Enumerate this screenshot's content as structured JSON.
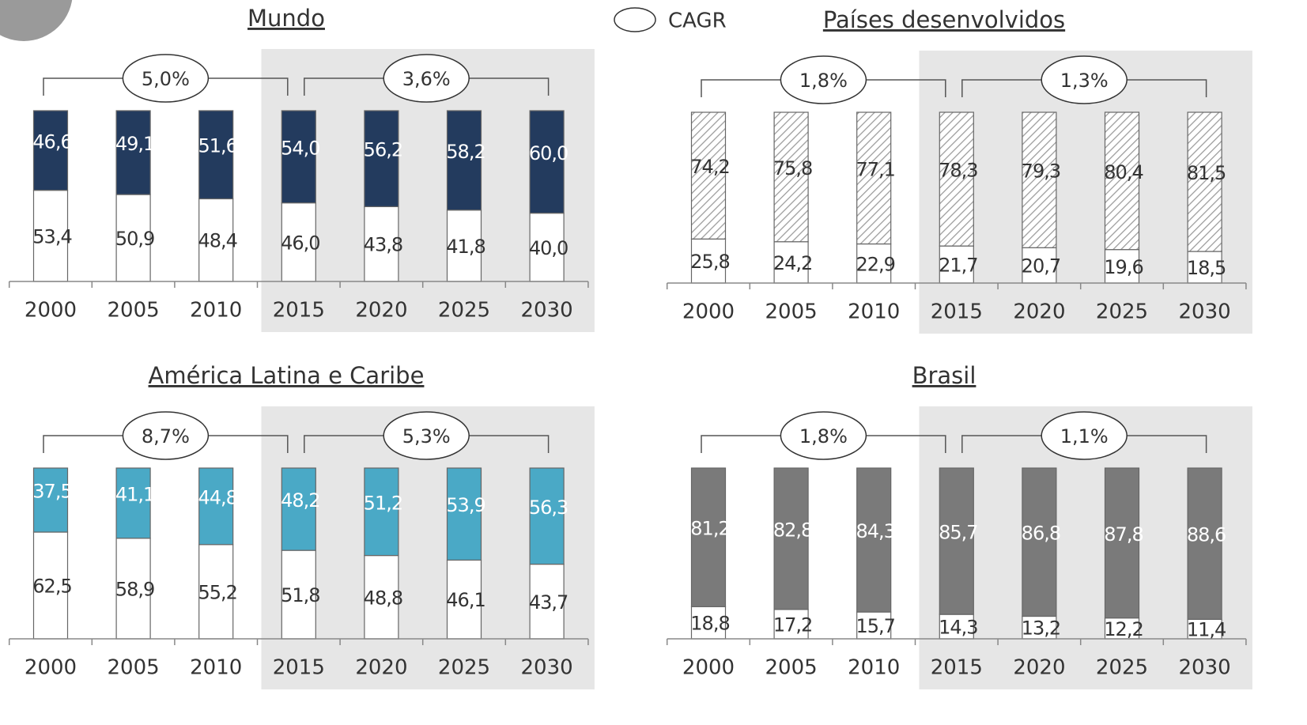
{
  "legend": "CAGR",
  "chart_data": [
    {
      "type": "bar",
      "stacked": true,
      "title": "Mundo",
      "categories": [
        "2000",
        "2005",
        "2010",
        "2015",
        "2020",
        "2025",
        "2030"
      ],
      "ylim": [
        0,
        100
      ],
      "annotations": [
        "5,0%",
        "3,6%"
      ],
      "series": [
        {
          "color": "#ffffff",
          "values": [
            53.4,
            50.9,
            48.4,
            46.0,
            43.8,
            41.8,
            40.0
          ],
          "value_labels": [
            "53,4",
            "50,9",
            "48,4",
            "46,0",
            "43,8",
            "41,8",
            "40,0"
          ]
        },
        {
          "color": "#233b5e",
          "values": [
            46.6,
            49.1,
            51.6,
            54.0,
            56.2,
            58.2,
            60.0
          ],
          "value_labels": [
            "46,6",
            "49,1",
            "51,6",
            "54,0",
            "56,2",
            "58,2",
            "60,0"
          ]
        }
      ]
    },
    {
      "type": "bar",
      "stacked": true,
      "title": "Países desenvolvidos",
      "categories": [
        "2000",
        "2005",
        "2010",
        "2015",
        "2020",
        "2025",
        "2030"
      ],
      "ylim": [
        0,
        100
      ],
      "annotations": [
        "1,8%",
        "1,3%"
      ],
      "series": [
        {
          "color": "#ffffff",
          "values": [
            25.8,
            24.2,
            22.9,
            21.7,
            20.7,
            19.6,
            18.5
          ],
          "value_labels": [
            "25,8",
            "24,2",
            "22,9",
            "21,7",
            "20,7",
            "19,6",
            "18,5"
          ]
        },
        {
          "color": "#9a9a9a",
          "pattern": "hatch",
          "values": [
            74.2,
            75.8,
            77.1,
            78.3,
            79.3,
            80.4,
            81.5
          ],
          "value_labels": [
            "74,2",
            "75,8",
            "77,1",
            "78,3",
            "79,3",
            "80,4",
            "81,5"
          ]
        }
      ]
    },
    {
      "type": "bar",
      "stacked": true,
      "title": "América Latina e Caribe",
      "categories": [
        "2000",
        "2005",
        "2010",
        "2015",
        "2020",
        "2025",
        "2030"
      ],
      "ylim": [
        0,
        100
      ],
      "annotations": [
        "8,7%",
        "5,3%"
      ],
      "series": [
        {
          "color": "#ffffff",
          "values": [
            62.5,
            58.9,
            55.2,
            51.8,
            48.8,
            46.1,
            43.7
          ],
          "value_labels": [
            "62,5",
            "58,9",
            "55,2",
            "51,8",
            "48,8",
            "46,1",
            "43,7"
          ]
        },
        {
          "color": "#4aa9c6",
          "values": [
            37.5,
            41.1,
            44.8,
            48.2,
            51.2,
            53.9,
            56.3
          ],
          "value_labels": [
            "37,5",
            "41,1",
            "44,8",
            "48,2",
            "51,2",
            "53,9",
            "56,3"
          ]
        }
      ]
    },
    {
      "type": "bar",
      "stacked": true,
      "title": "Brasil",
      "categories": [
        "2000",
        "2005",
        "2010",
        "2015",
        "2020",
        "2025",
        "2030"
      ],
      "ylim": [
        0,
        100
      ],
      "annotations": [
        "1,8%",
        "1,1%"
      ],
      "series": [
        {
          "color": "#ffffff",
          "values": [
            18.8,
            17.2,
            15.7,
            14.3,
            13.2,
            12.2,
            11.4
          ],
          "value_labels": [
            "18,8",
            "17,2",
            "15,7",
            "14,3",
            "13,2",
            "12,2",
            "11,4"
          ]
        },
        {
          "color": "#7a7a7a",
          "values": [
            81.2,
            82.8,
            84.3,
            85.7,
            86.8,
            87.8,
            88.6
          ],
          "value_labels": [
            "81,2",
            "82,8",
            "84,3",
            "85,7",
            "86,8",
            "87,8",
            "88,6"
          ]
        }
      ]
    }
  ]
}
